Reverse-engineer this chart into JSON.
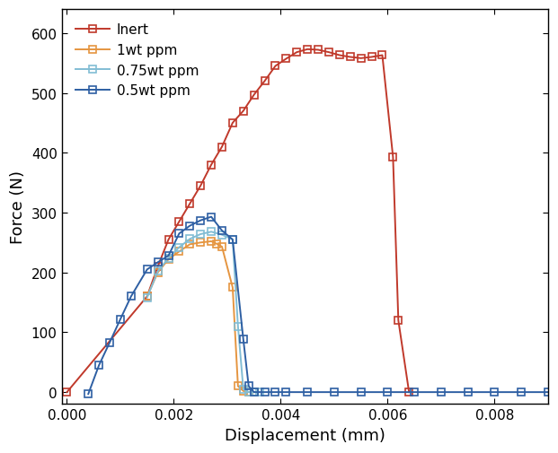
{
  "title": "",
  "xlabel": "Displacement (mm)",
  "ylabel": "Force (N)",
  "xlim": [
    -0.0001,
    0.009
  ],
  "ylim": [
    -20,
    640
  ],
  "background_color": "#ffffff",
  "series": [
    {
      "label": "Inert",
      "color": "#c0392b",
      "x": [
        0.0,
        0.0015,
        0.0017,
        0.0019,
        0.0021,
        0.0023,
        0.0025,
        0.0027,
        0.0029,
        0.0031,
        0.0033,
        0.0035,
        0.0037,
        0.0039,
        0.0041,
        0.0043,
        0.0045,
        0.0047,
        0.0049,
        0.0051,
        0.0053,
        0.0055,
        0.0057,
        0.0059,
        0.0061,
        0.0062,
        0.0064
      ],
      "y": [
        0,
        160,
        210,
        255,
        285,
        315,
        345,
        380,
        410,
        450,
        470,
        497,
        520,
        545,
        557,
        568,
        573,
        572,
        568,
        563,
        560,
        558,
        560,
        563,
        393,
        120,
        0
      ]
    },
    {
      "label": "1wt ppm",
      "color": "#e59540",
      "x": [
        0.0015,
        0.0017,
        0.0019,
        0.0021,
        0.0023,
        0.0025,
        0.0027,
        0.0028,
        0.0029,
        0.0031,
        0.0032,
        0.0033,
        0.0034,
        0.0035
      ],
      "y": [
        160,
        200,
        222,
        235,
        247,
        250,
        252,
        248,
        243,
        175,
        10,
        2,
        0,
        0
      ]
    },
    {
      "label": "0.75wt ppm",
      "color": "#82bdd4",
      "x": [
        0.0015,
        0.0017,
        0.0019,
        0.0021,
        0.0023,
        0.0025,
        0.0027,
        0.0029,
        0.0031,
        0.0032,
        0.0033,
        0.0034,
        0.0035,
        0.0036
      ],
      "y": [
        158,
        202,
        224,
        242,
        256,
        264,
        268,
        263,
        255,
        110,
        5,
        0,
        0,
        0
      ]
    },
    {
      "label": "0.5wt ppm",
      "color": "#2e5fa3",
      "x": [
        0.0004,
        0.0006,
        0.0008,
        0.001,
        0.0012,
        0.0015,
        0.0017,
        0.0019,
        0.0021,
        0.0023,
        0.0025,
        0.0027,
        0.0029,
        0.0031,
        0.0033,
        0.0034,
        0.0035,
        0.0037,
        0.0039,
        0.0041,
        0.0045,
        0.005,
        0.0055,
        0.006,
        0.0065,
        0.007,
        0.0075,
        0.008,
        0.0085,
        0.009
      ],
      "y": [
        -3,
        45,
        83,
        122,
        160,
        205,
        217,
        228,
        265,
        278,
        287,
        293,
        270,
        255,
        88,
        10,
        0,
        0,
        0,
        0,
        0,
        0,
        0,
        0,
        0,
        0,
        0,
        0,
        0,
        0
      ]
    }
  ],
  "xticks": [
    0.0,
    0.002,
    0.004,
    0.006,
    0.008
  ],
  "xtick_labels": [
    "0.000",
    "0.002",
    "0.004",
    "0.006",
    "0.008"
  ],
  "yticks": [
    0,
    100,
    200,
    300,
    400,
    500,
    600
  ],
  "legend_loc": "upper left",
  "marker": "s",
  "markersize": 5.5,
  "linewidth": 1.4
}
